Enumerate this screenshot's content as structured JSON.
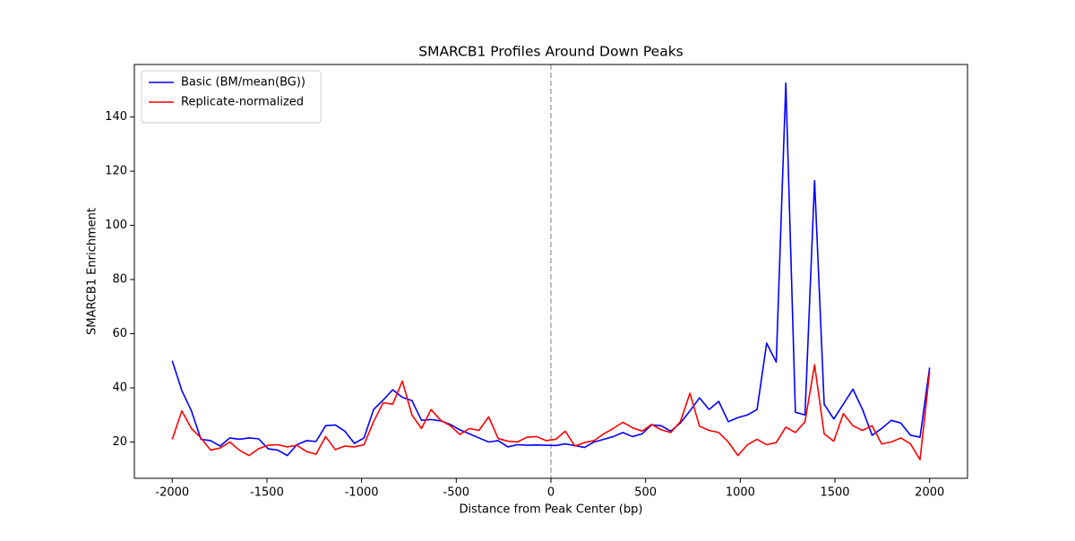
{
  "chart_data": {
    "type": "line",
    "title": "SMARCB1 Profiles Around Down Peaks",
    "xlabel": "Distance from Peak Center (bp)",
    "ylabel": "SMARCB1 Enrichment",
    "x": [
      -2000,
      -1949.37,
      -1898.73,
      -1848.1,
      -1797.47,
      -1746.84,
      -1696.2,
      -1645.57,
      -1594.94,
      -1544.3,
      -1493.67,
      -1443.04,
      -1392.41,
      -1341.77,
      -1291.14,
      -1240.51,
      -1189.87,
      -1139.24,
      -1088.61,
      -1037.97,
      -987.34,
      -936.71,
      -886.08,
      -835.44,
      -784.81,
      -734.18,
      -683.54,
      -632.91,
      -582.28,
      -531.65,
      -481.01,
      -430.38,
      -379.75,
      -329.11,
      -278.48,
      -227.85,
      -177.22,
      -126.58,
      -75.95,
      -25.32,
      25.32,
      75.95,
      126.58,
      177.22,
      227.85,
      278.48,
      329.11,
      379.75,
      430.38,
      481.01,
      531.65,
      582.28,
      632.91,
      683.54,
      734.18,
      784.81,
      835.44,
      886.08,
      936.71,
      987.34,
      1037.97,
      1088.61,
      1139.24,
      1189.87,
      1240.51,
      1291.14,
      1341.77,
      1392.41,
      1443.04,
      1493.67,
      1544.3,
      1594.94,
      1645.57,
      1696.2,
      1746.84,
      1797.47,
      1848.1,
      1898.73,
      1949.37,
      2000
    ],
    "series": [
      {
        "name": "Basic (BM/mean(BG))",
        "color": "#0000ff",
        "values": [
          50,
          39,
          31.5,
          21,
          20.5,
          18.5,
          21.5,
          21,
          21.5,
          21.2,
          17.5,
          17,
          15,
          19,
          20.5,
          20.2,
          26,
          26.3,
          24,
          19.5,
          21.5,
          32,
          35.5,
          39.3,
          36.5,
          35.3,
          28,
          28.3,
          27.8,
          26.5,
          24.5,
          23,
          21.5,
          20,
          20.5,
          18.2,
          19,
          18.8,
          18.9,
          18.8,
          18.7,
          19.3,
          18.7,
          18,
          20,
          21,
          22,
          23.5,
          22,
          23,
          26.3,
          26,
          24,
          27,
          31.5,
          36.3,
          32,
          35,
          27.5,
          29,
          30,
          32,
          56.5,
          49.5,
          152.5,
          31,
          30,
          116.5,
          34,
          28.5,
          34,
          39.5,
          32,
          22.5,
          25,
          28,
          27,
          22.5,
          21.8,
          47.5
        ]
      },
      {
        "name": "Replicate-normalized",
        "color": "#ff0000",
        "values": [
          21,
          31.5,
          25,
          21.5,
          17,
          17.8,
          20,
          17,
          15,
          17.5,
          18.8,
          19,
          18.2,
          18.8,
          16.5,
          15.5,
          22,
          17.2,
          18.5,
          18.2,
          19,
          27.5,
          34.5,
          34,
          42.5,
          30,
          25,
          32,
          28,
          26,
          22.8,
          25,
          24.3,
          29.3,
          21.3,
          20.3,
          20,
          21.8,
          22,
          20.5,
          21,
          24,
          18.5,
          19.8,
          20.5,
          23,
          25,
          27.3,
          25.3,
          24,
          26.5,
          24.5,
          23.5,
          27.5,
          38,
          25.8,
          24.3,
          23.5,
          20,
          15,
          19,
          21,
          19,
          19.8,
          25.5,
          23.5,
          27.5,
          48.5,
          23,
          20.3,
          30.5,
          26,
          24.3,
          26,
          19.3,
          20,
          21.5,
          19.3,
          13.5,
          46
        ]
      }
    ],
    "vline": 0,
    "xlim": [
      -2200,
      2200
    ],
    "xticks": [
      -2000,
      -1500,
      -1000,
      -500,
      0,
      500,
      1000,
      1500,
      2000
    ],
    "ylim": [
      6.6,
      159.4
    ],
    "yticks": [
      20,
      40,
      60,
      80,
      100,
      120,
      140
    ],
    "grid": false,
    "legend": "upper left"
  }
}
